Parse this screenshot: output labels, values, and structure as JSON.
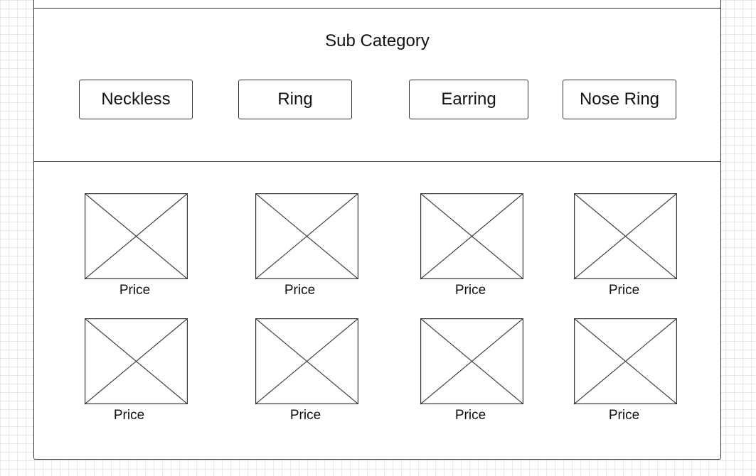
{
  "section": {
    "title": "Sub Category"
  },
  "categories": [
    {
      "label": "Neckless"
    },
    {
      "label": "Ring"
    },
    {
      "label": "Earring"
    },
    {
      "label": "Nose Ring"
    }
  ],
  "products": [
    {
      "price_label": "Price"
    },
    {
      "price_label": "Price"
    },
    {
      "price_label": "Price"
    },
    {
      "price_label": "Price"
    },
    {
      "price_label": "Price"
    },
    {
      "price_label": "Price"
    },
    {
      "price_label": "Price"
    },
    {
      "price_label": "Price"
    }
  ],
  "colors": {
    "stroke": "#333333",
    "grid": "#e6e6e6",
    "background": "#ffffff"
  }
}
